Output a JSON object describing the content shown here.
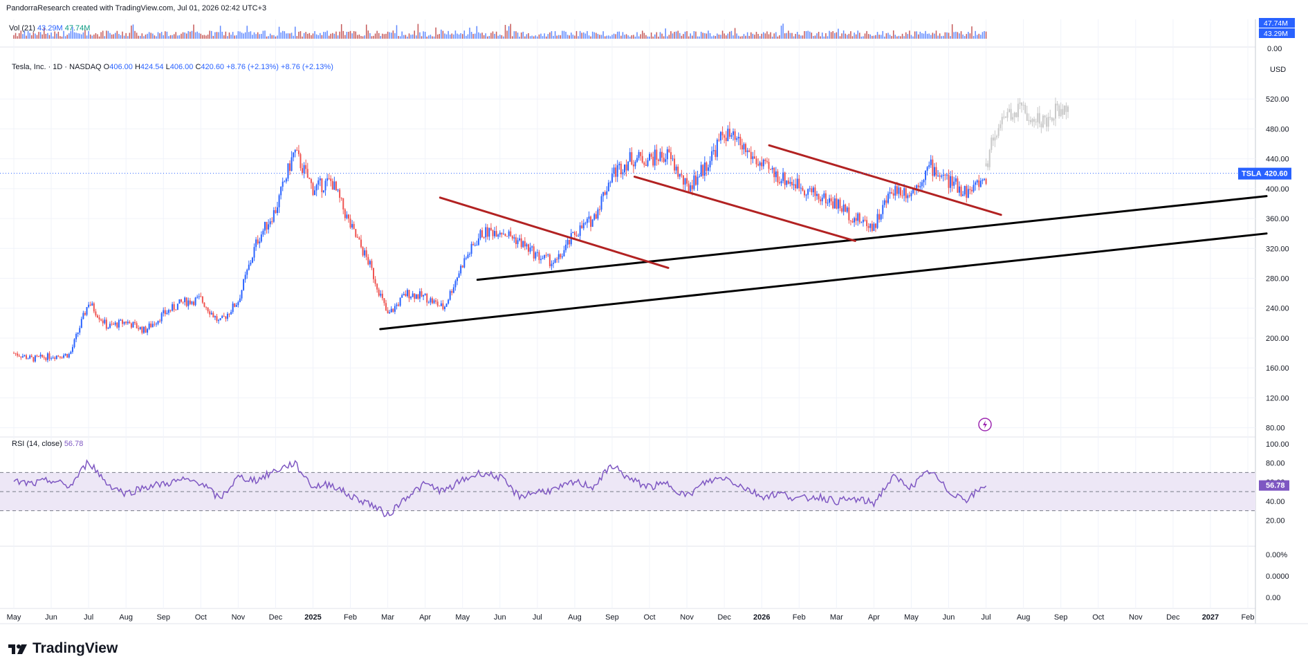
{
  "header": {
    "caption": "PandorraResearch created with TradingView.com, Jul 01, 2026 02:42 UTC+3"
  },
  "volume_legend": {
    "label": "Vol (21)",
    "value1": "43.29M",
    "value2": "47.74M"
  },
  "price_legend": {
    "symbol_line": "Tesla, Inc. · 1D · NASDAQ",
    "o_label": "O",
    "o_value": "406.00",
    "h_label": "H",
    "h_value": "424.54",
    "l_label": "L",
    "l_value": "406.00",
    "c_label": "C",
    "c_value": "420.60",
    "change1": "+8.76 (+2.13%)",
    "change2": "+8.76 (+2.13%)"
  },
  "rsi_legend": {
    "label": "RSI (14, close)",
    "value": "56.78"
  },
  "right_scale": {
    "currency": "USD",
    "vol_tag_top": "47.74M",
    "vol_tag_bottom": "43.29M",
    "vol_zero": "0.00",
    "price_tag_symbol": "TSLA",
    "price_tag_value": "420.60",
    "rsi_tag_value": "56.78",
    "extra_labels": [
      "0.00%",
      "0.0000",
      "0.00"
    ]
  },
  "brand": {
    "name": "TradingView"
  },
  "colors": {
    "up": "#2962ff",
    "down": "#ef5350",
    "projection": "#c8c8c8",
    "trend_black": "#000000",
    "trend_red": "#b22222",
    "rsi_line": "#7e57c2",
    "rsi_band": "#ede7f6",
    "price_line": "#2962ff",
    "volume": "#b22222"
  },
  "chart_data": {
    "type": "candlestick",
    "title": "Tesla, Inc. · 1D · NASDAQ",
    "currency": "USD",
    "x_ticks": [
      "May",
      "Jun",
      "Jul",
      "Aug",
      "Sep",
      "Oct",
      "Nov",
      "Dec",
      "2025",
      "Feb",
      "Mar",
      "Apr",
      "May",
      "Jun",
      "Jul",
      "Aug",
      "Sep",
      "Oct",
      "Nov",
      "Dec",
      "2026",
      "Feb",
      "Mar",
      "Apr",
      "May",
      "Jun",
      "Jul",
      "Aug",
      "Sep",
      "Oct",
      "Nov",
      "Dec",
      "2027",
      "Feb"
    ],
    "y_ticks": [
      80,
      120,
      160,
      200,
      240,
      280,
      320,
      360,
      400,
      440,
      480,
      520
    ],
    "ylim": [
      75,
      560
    ],
    "last_close": 420.6,
    "series": [
      {
        "name": "TSLA",
        "kind": "close-anchors (monthly index, price)",
        "points": [
          [
            0,
            180
          ],
          [
            0.5,
            172
          ],
          [
            1,
            176
          ],
          [
            1.5,
            178
          ],
          [
            2,
            248
          ],
          [
            2.5,
            215
          ],
          [
            3,
            222
          ],
          [
            3.5,
            210
          ],
          [
            4,
            232
          ],
          [
            4.5,
            248
          ],
          [
            5,
            252
          ],
          [
            5.5,
            220
          ],
          [
            6,
            250
          ],
          [
            6.5,
            330
          ],
          [
            7,
            372
          ],
          [
            7.5,
            450
          ],
          [
            8,
            400
          ],
          [
            8.5,
            410
          ],
          [
            9,
            350
          ],
          [
            9.5,
            300
          ],
          [
            10,
            230
          ],
          [
            10.5,
            260
          ],
          [
            11,
            255
          ],
          [
            11.5,
            240
          ],
          [
            12,
            300
          ],
          [
            12.5,
            340
          ],
          [
            13,
            345
          ],
          [
            13.5,
            330
          ],
          [
            14,
            310
          ],
          [
            14.5,
            300
          ],
          [
            15,
            340
          ],
          [
            15.5,
            360
          ],
          [
            16,
            420
          ],
          [
            16.5,
            440
          ],
          [
            17,
            440
          ],
          [
            17.5,
            445
          ],
          [
            18,
            400
          ],
          [
            18.5,
            430
          ],
          [
            19,
            475
          ],
          [
            19.5,
            455
          ],
          [
            20,
            430
          ],
          [
            20.5,
            415
          ],
          [
            21,
            405
          ],
          [
            21.5,
            390
          ],
          [
            22,
            380
          ],
          [
            22.5,
            360
          ],
          [
            23,
            350
          ],
          [
            23.5,
            400
          ],
          [
            24,
            395
          ],
          [
            24.5,
            430
          ],
          [
            25,
            410
          ],
          [
            25.5,
            395
          ],
          [
            26,
            415
          ]
        ]
      },
      {
        "name": "projection",
        "kind": "ghost path (monthly index, price)",
        "points": [
          [
            26,
            430
          ],
          [
            26.2,
            470
          ],
          [
            26.5,
            500
          ],
          [
            27,
            505
          ],
          [
            27.5,
            490
          ],
          [
            28,
            510
          ],
          [
            28.2,
            515
          ]
        ]
      }
    ],
    "trendlines": [
      {
        "name": "lower support",
        "color": "black",
        "from": [
          9.8,
          212
        ],
        "to": [
          33.5,
          340
        ]
      },
      {
        "name": "upper support",
        "color": "black",
        "from": [
          12.4,
          278
        ],
        "to": [
          33.5,
          390
        ]
      },
      {
        "name": "descending channel 1",
        "color": "red",
        "from": [
          11.4,
          388
        ],
        "to": [
          17.5,
          294
        ]
      },
      {
        "name": "descending channel 2",
        "color": "red",
        "from": [
          16.6,
          416
        ],
        "to": [
          22.5,
          330
        ]
      },
      {
        "name": "descending channel 3",
        "color": "red",
        "from": [
          20.2,
          458
        ],
        "to": [
          26.4,
          365
        ]
      }
    ],
    "rsi": {
      "name": "RSI (14, close)",
      "ylim": [
        0,
        100
      ],
      "y_ticks": [
        20,
        40,
        60,
        80,
        100
      ],
      "upper_band": 70,
      "lower_band": 30,
      "midline": 50,
      "last": 56.78,
      "points": [
        [
          0,
          60
        ],
        [
          0.5,
          58
        ],
        [
          1,
          62
        ],
        [
          1.5,
          55
        ],
        [
          2,
          82
        ],
        [
          2.5,
          58
        ],
        [
          3,
          48
        ],
        [
          3.5,
          55
        ],
        [
          4,
          58
        ],
        [
          4.5,
          62
        ],
        [
          5,
          60
        ],
        [
          5.5,
          42
        ],
        [
          6,
          65
        ],
        [
          6.5,
          62
        ],
        [
          7,
          72
        ],
        [
          7.5,
          80
        ],
        [
          8,
          55
        ],
        [
          8.5,
          58
        ],
        [
          9,
          45
        ],
        [
          9.5,
          38
        ],
        [
          10,
          25
        ],
        [
          10.5,
          45
        ],
        [
          11,
          58
        ],
        [
          11.5,
          50
        ],
        [
          12,
          62
        ],
        [
          12.5,
          70
        ],
        [
          13,
          65
        ],
        [
          13.5,
          45
        ],
        [
          14,
          50
        ],
        [
          14.5,
          52
        ],
        [
          15,
          60
        ],
        [
          15.5,
          55
        ],
        [
          16,
          78
        ],
        [
          16.5,
          62
        ],
        [
          17,
          55
        ],
        [
          17.5,
          58
        ],
        [
          18,
          45
        ],
        [
          18.5,
          60
        ],
        [
          19,
          65
        ],
        [
          19.5,
          55
        ],
        [
          20,
          45
        ],
        [
          20.5,
          48
        ],
        [
          21,
          42
        ],
        [
          21.5,
          45
        ],
        [
          22,
          40
        ],
        [
          22.5,
          42
        ],
        [
          23,
          38
        ],
        [
          23.5,
          65
        ],
        [
          24,
          55
        ],
        [
          24.5,
          72
        ],
        [
          25,
          50
        ],
        [
          25.5,
          42
        ],
        [
          26,
          56.78
        ]
      ]
    },
    "volume": {
      "name": "Vol (21)",
      "last": "43.29M",
      "average": "47.74M"
    }
  }
}
